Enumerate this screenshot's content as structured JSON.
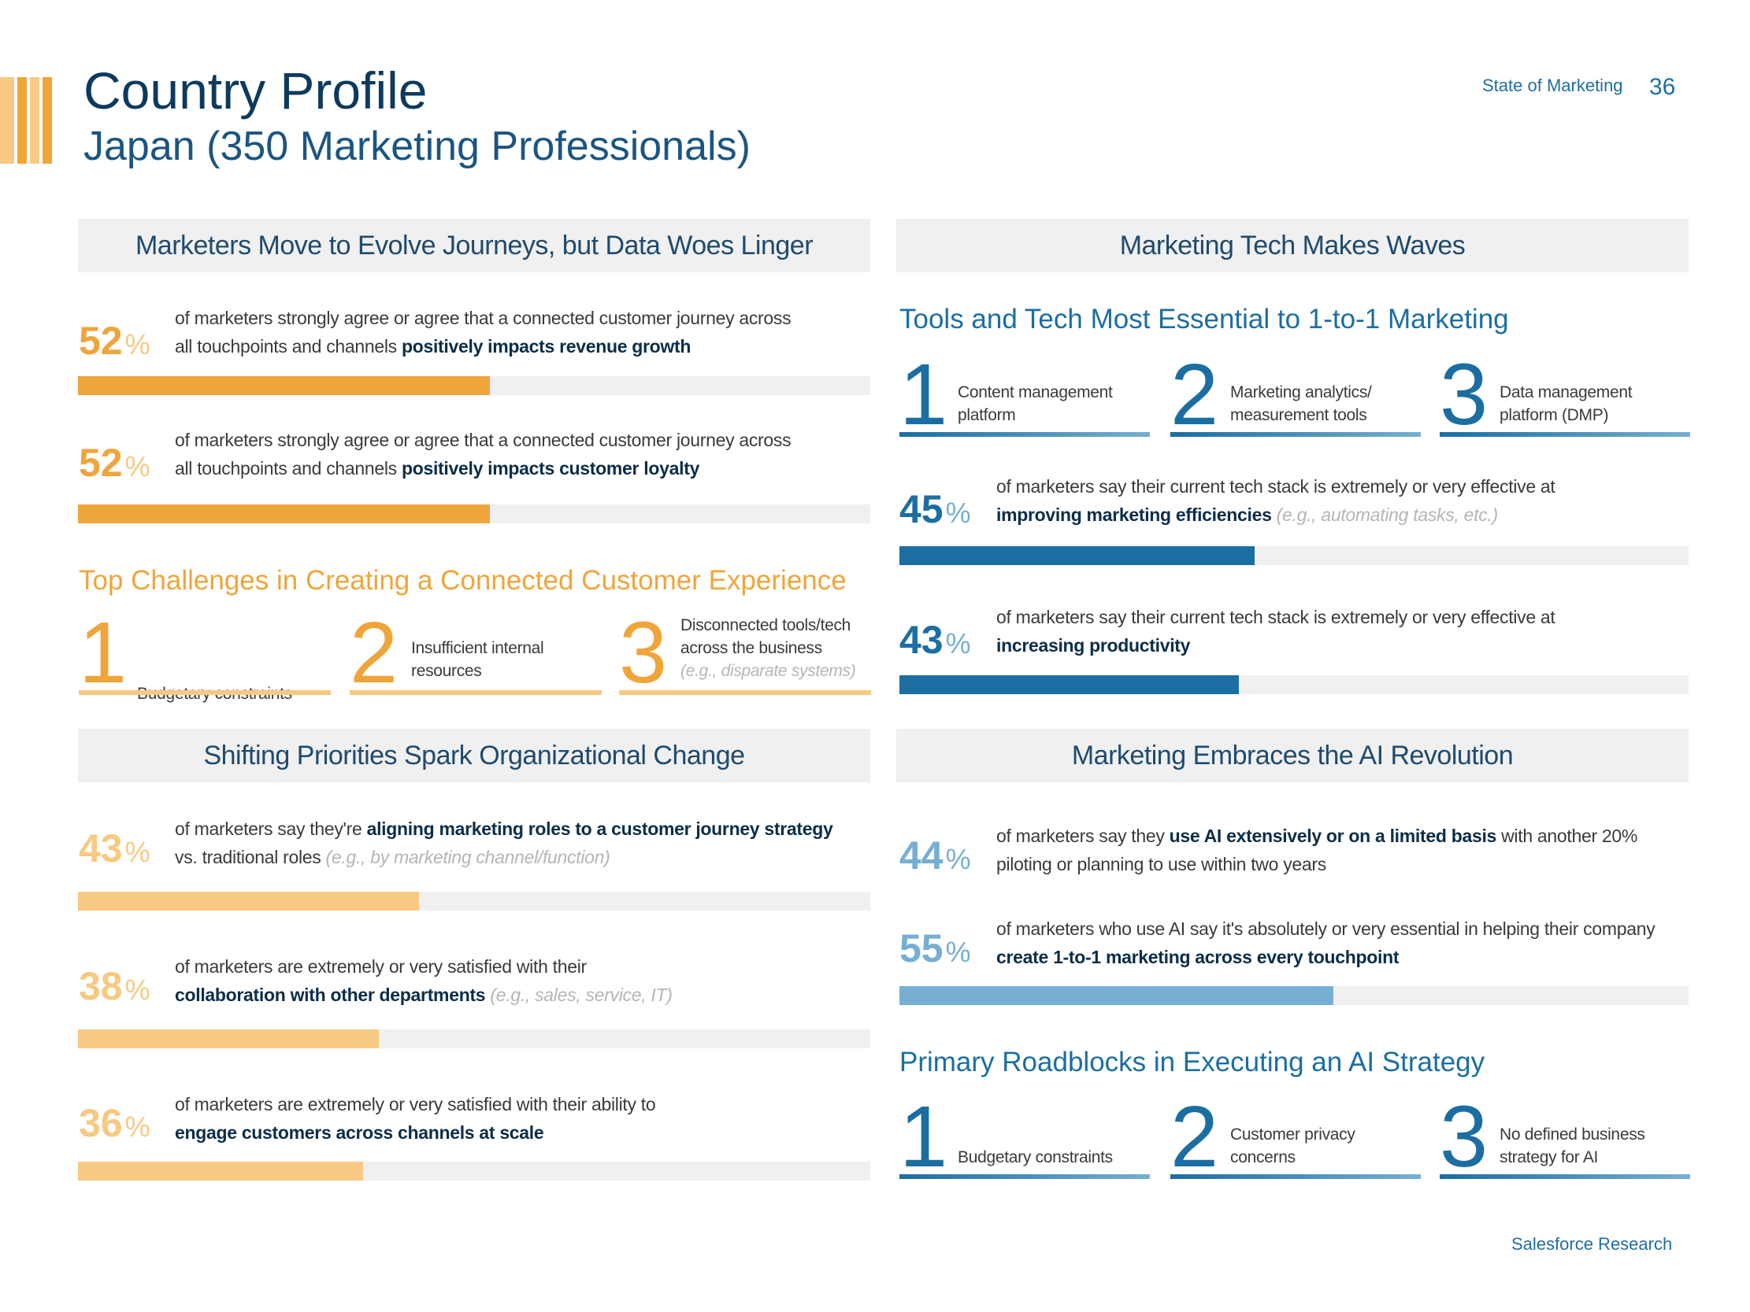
{
  "header": {
    "title": "Country Profile",
    "subtitle": "Japan (350 Marketing Professionals)",
    "running_head": "State of Marketing",
    "page_number": "36"
  },
  "footer": {
    "text": "Salesforce Research"
  },
  "colors": {
    "orange": "#f0a53a",
    "light_orange": "#f7c982",
    "dark_blue": "#1b6ea1",
    "light_blue": "#76afd2",
    "band": "#f0f0f1"
  },
  "sections": {
    "journeys": {
      "title": "Marketers Move to Evolve Journeys, but Data Woes Linger",
      "stats": [
        {
          "pct": "52",
          "value": 52,
          "line1": "of marketers strongly agree or agree that a connected customer journey across",
          "line2_plain": "all touchpoints and channels ",
          "line2_bold": "positively impacts revenue growth"
        },
        {
          "pct": "52",
          "value": 52,
          "line1": "of marketers strongly agree or agree that a connected customer journey across",
          "line2_plain": "all touchpoints and channels ",
          "line2_bold": "positively impacts customer loyalty"
        }
      ],
      "challenges_title": "Top Challenges in Creating a Connected Customer Experience",
      "challenges": [
        {
          "rank": "1",
          "line1": "",
          "line2": "Budgetary constraints",
          "note": ""
        },
        {
          "rank": "2",
          "line1": "Insufficient internal",
          "line2": "resources",
          "note": ""
        },
        {
          "rank": "3",
          "line1": "Disconnected tools/tech",
          "line2": "across the business",
          "note": "(e.g., disparate systems)"
        }
      ]
    },
    "martech": {
      "title": "Marketing Tech Makes Waves",
      "tools_title": "Tools and Tech Most Essential to 1-to-1 Marketing",
      "tools": [
        {
          "rank": "1",
          "line1": "Content management",
          "line2": "platform"
        },
        {
          "rank": "2",
          "line1": "Marketing analytics/",
          "line2": "measurement tools"
        },
        {
          "rank": "3",
          "line1": "Data management",
          "line2": "platform (DMP)"
        }
      ],
      "stats": [
        {
          "pct": "45",
          "value": 45,
          "line1": "of marketers say their current tech stack is extremely or very effective at",
          "line2_bold": "improving marketing efficiencies",
          "line2_note": "(e.g., automating tasks, etc.)"
        },
        {
          "pct": "43",
          "value": 43,
          "line1": "of marketers say their current tech stack is extremely or very effective at",
          "line2_bold": "increasing productivity",
          "line2_note": ""
        }
      ]
    },
    "org_change": {
      "title": "Shifting Priorities Spark Organizational Change",
      "stats": [
        {
          "pct": "43",
          "value": 43,
          "line1_plain": "of marketers say they're ",
          "line1_bold": "aligning marketing roles to a customer journey strategy",
          "line2_plain": "vs. traditional roles ",
          "line2_note": "(e.g., by marketing channel/function)"
        },
        {
          "pct": "38",
          "value": 38,
          "line1_plain": "of marketers are extremely or very satisfied with their",
          "line1_bold": "",
          "line2_bold": "collaboration with other departments",
          "line2_note": "(e.g., sales, service, IT)"
        },
        {
          "pct": "36",
          "value": 36,
          "line1_plain": "of marketers are extremely or very satisfied with their ability to",
          "line1_bold": "",
          "line2_bold": "engage customers across channels at scale",
          "line2_note": ""
        }
      ]
    },
    "ai": {
      "title": "Marketing Embraces the AI Revolution",
      "stats": [
        {
          "pct": "44",
          "value": 44,
          "line1_plain": "of marketers say they ",
          "line1_bold": "use AI extensively or on a limited basis",
          "line1_tail": " with another 20%",
          "line2_plain": "piloting or planning to use within two years"
        },
        {
          "pct": "55",
          "value": 55,
          "line1_plain": "of marketers who use AI say it's absolutely or very essential in helping their company",
          "line2_bold": "create 1-to-1 marketing across every touchpoint"
        }
      ],
      "roadblocks_title": "Primary Roadblocks in Executing an AI Strategy",
      "roadblocks": [
        {
          "rank": "1",
          "line1": "",
          "line2": "Budgetary constraints"
        },
        {
          "rank": "2",
          "line1": "Customer privacy",
          "line2": "concerns"
        },
        {
          "rank": "3",
          "line1": "No defined business",
          "line2": "strategy for AI"
        }
      ]
    }
  }
}
